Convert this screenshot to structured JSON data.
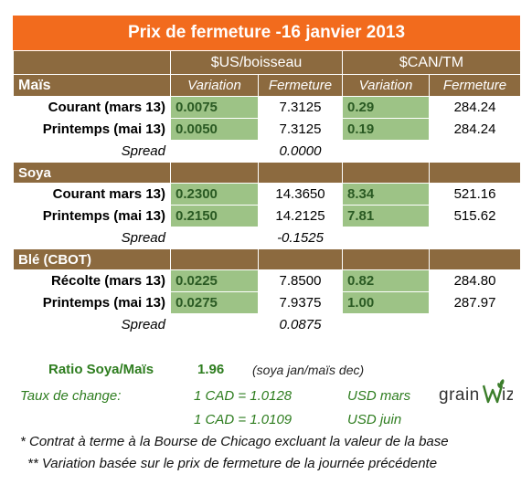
{
  "title": "Prix de fermeture -16 janvier 2013",
  "headers": {
    "group_us": "$US/boisseau",
    "group_can": "$CAN/TM",
    "variation": "Variation",
    "fermeture": "Fermeture"
  },
  "sections": [
    {
      "name": "Maïs",
      "rows": [
        {
          "label": "Courant (mars 13)",
          "us_var": "0.0075",
          "us_close": "7.3125",
          "can_var": "0.29",
          "can_close": "284.24"
        },
        {
          "label": "Printemps (mai 13)",
          "us_var": "0.0050",
          "us_close": "7.3125",
          "can_var": "0.19",
          "can_close": "284.24"
        }
      ],
      "spread_label": "Spread",
      "spread_value": "0.0000"
    },
    {
      "name": "Soya",
      "rows": [
        {
          "label": "Courant mars 13)",
          "us_var": "0.2300",
          "us_close": "14.3650",
          "can_var": "8.34",
          "can_close": "521.16"
        },
        {
          "label": "Printemps (mai 13)",
          "us_var": "0.2150",
          "us_close": "14.2125",
          "can_var": "7.81",
          "can_close": "515.62"
        }
      ],
      "spread_label": "Spread",
      "spread_value": "-0.1525"
    },
    {
      "name": "Blé (CBOT)",
      "rows": [
        {
          "label": "Récolte (mars 13)",
          "us_var": "0.0225",
          "us_close": "7.8500",
          "can_var": "0.82",
          "can_close": "284.80"
        },
        {
          "label": "Printemps (mai 13)",
          "us_var": "0.0275",
          "us_close": "7.9375",
          "can_var": "1.00",
          "can_close": "287.97"
        }
      ],
      "spread_label": "Spread",
      "spread_value": "0.0875"
    }
  ],
  "ratio": {
    "label": "Ratio Soya/Maïs",
    "value": "1.96",
    "note": "(soya jan/maïs dec)"
  },
  "exchange": {
    "label": "Taux de change:",
    "rate1": "1 CAD =  1.0128",
    "rate1_label": "USD mars",
    "rate2": "1 CAD =  1.0109",
    "rate2_label": "USD juin"
  },
  "notes": {
    "note1": "* Contrat à terme à la Bourse de Chicago excluant la valeur de la base",
    "note2": "** Variation basée sur le prix de fermeture de la journée précédente"
  },
  "logo": {
    "text_left": "grain",
    "text_right": "iz"
  },
  "colors": {
    "title_bg": "#f26b1d",
    "header_bg": "#8c6a3f",
    "variation_cell_bg": "#9dc386",
    "accent_green": "#2e7d1f"
  }
}
